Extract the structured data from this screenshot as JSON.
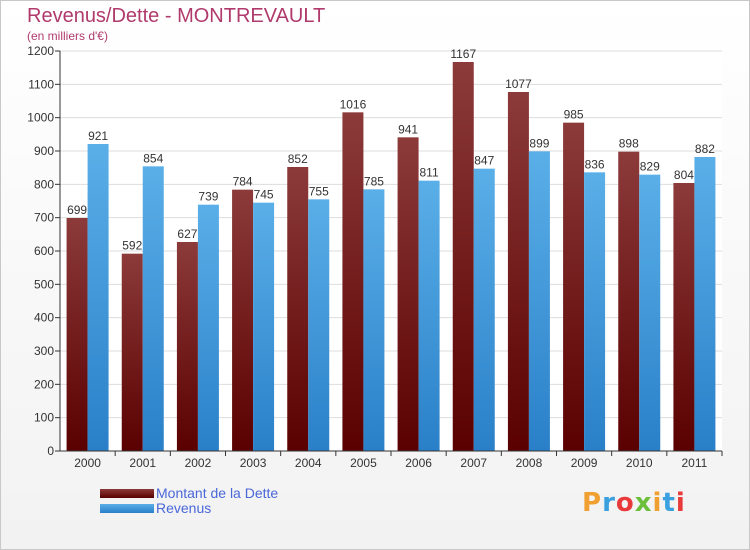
{
  "header": {
    "title": "Revenus/Dette - MONTREVAULT",
    "subtitle": "(en milliers d'€)"
  },
  "logo": {
    "text": "Proxiti",
    "colors": [
      "#f0a030",
      "#3aa0e0",
      "#e83a3a",
      "#6cbf3a",
      "#f0a030",
      "#3aa0e0",
      "#e83a3a"
    ]
  },
  "colors": {
    "dette_light": "#8c3a3a",
    "dette_dark": "#5a0000",
    "revenus_light": "#5aafe8",
    "revenus_dark": "#2a80c8",
    "axis": "#333333",
    "grid": "#dddddd"
  },
  "chart_data": {
    "type": "bar",
    "title": "Revenus/Dette - MONTREVAULT",
    "subtitle": "(en milliers d'€)",
    "categories": [
      "2000",
      "2001",
      "2002",
      "2003",
      "2004",
      "2005",
      "2006",
      "2007",
      "2008",
      "2009",
      "2010",
      "2011"
    ],
    "series": [
      {
        "name": "Montant de la Dette",
        "values": [
          699,
          592,
          627,
          784,
          852,
          1016,
          941,
          1167,
          1077,
          985,
          898,
          804
        ]
      },
      {
        "name": "Revenus",
        "values": [
          921,
          854,
          739,
          745,
          755,
          785,
          811,
          847,
          899,
          836,
          829,
          882
        ]
      }
    ],
    "ylim": [
      0,
      1200
    ],
    "yticks": [
      0,
      100,
      200,
      300,
      400,
      500,
      600,
      700,
      800,
      900,
      1000,
      1100,
      1200
    ],
    "grid": true,
    "data_labels": true,
    "legend_position": "bottom-left"
  }
}
